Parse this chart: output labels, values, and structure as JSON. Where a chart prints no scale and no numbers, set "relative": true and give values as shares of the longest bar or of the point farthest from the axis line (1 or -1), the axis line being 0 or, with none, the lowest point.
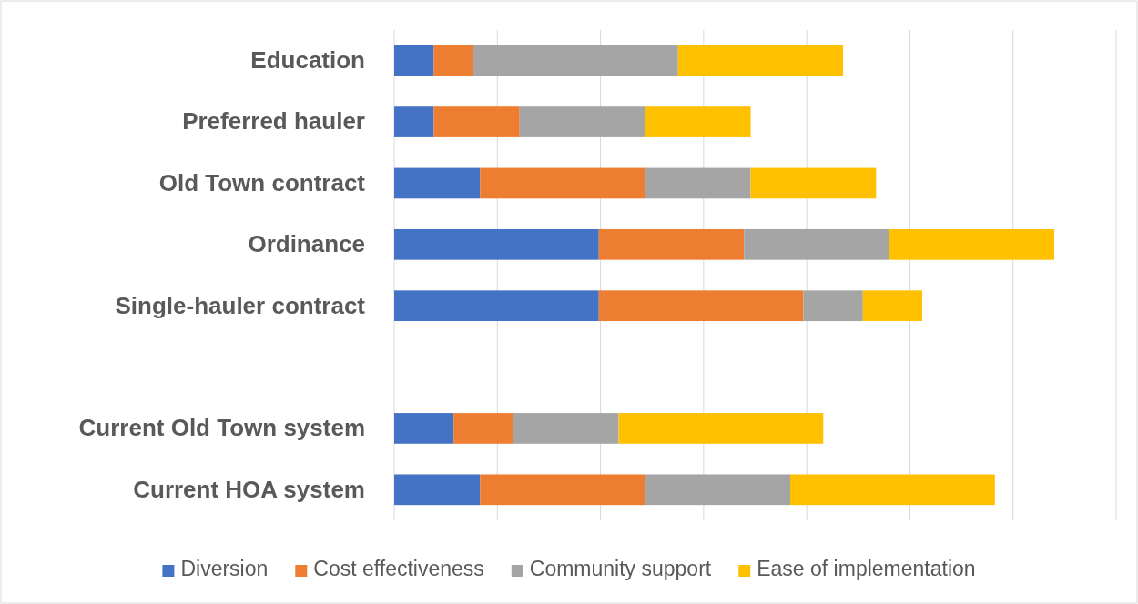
{
  "chart_data": {
    "type": "bar",
    "orientation": "horizontal",
    "stacked": true,
    "relative": true,
    "grid": true,
    "legend": "bottom",
    "categories": [
      "Education",
      "Preferred hauler",
      "Old Town contract",
      "Ordinance",
      "Single-hauler contract",
      null,
      "Current Old Town system",
      "Current HOA system"
    ],
    "series": [
      {
        "name": "Diversion",
        "color": "#4472c4",
        "values": [
          0.06,
          0.06,
          0.13,
          0.31,
          0.31,
          null,
          0.09,
          0.13
        ]
      },
      {
        "name": "Cost effectiveness",
        "color": "#ed7d31",
        "values": [
          0.06,
          0.13,
          0.25,
          0.22,
          0.31,
          null,
          0.09,
          0.25
        ]
      },
      {
        "name": "Community support",
        "color": "#a5a5a5",
        "values": [
          0.31,
          0.19,
          0.16,
          0.22,
          0.09,
          null,
          0.16,
          0.22
        ]
      },
      {
        "name": "Ease of implementation",
        "color": "#ffc000",
        "values": [
          0.25,
          0.16,
          0.19,
          0.25,
          0.09,
          null,
          0.31,
          0.31
        ]
      }
    ]
  }
}
